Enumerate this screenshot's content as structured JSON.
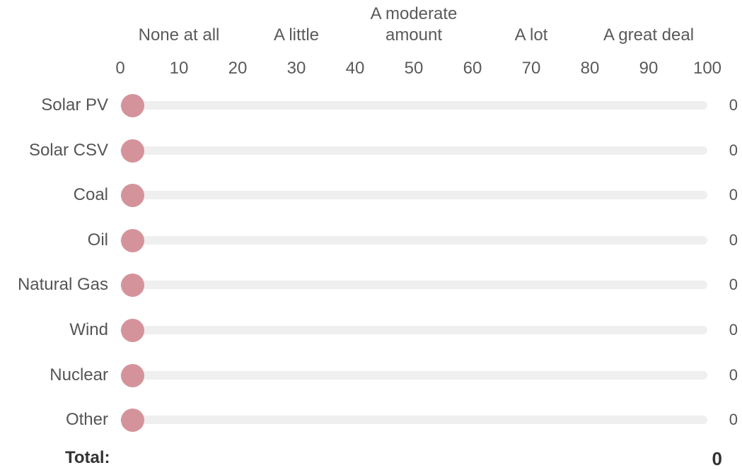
{
  "anchors": [
    {
      "label": "None at all",
      "value": 10
    },
    {
      "label": "A little",
      "value": 30
    },
    {
      "label": "A moderate amount",
      "value": 50
    },
    {
      "label": "A lot",
      "value": 70
    },
    {
      "label": "A great deal",
      "value": 90
    }
  ],
  "scale": {
    "min": 0,
    "max": 100,
    "ticks": [
      "0",
      "10",
      "20",
      "30",
      "40",
      "50",
      "60",
      "70",
      "80",
      "90",
      "100"
    ]
  },
  "sliders": [
    {
      "label": "Solar PV",
      "value": 0,
      "display": "0"
    },
    {
      "label": "Solar CSV",
      "value": 0,
      "display": "0"
    },
    {
      "label": "Coal",
      "value": 0,
      "display": "0"
    },
    {
      "label": "Oil",
      "value": 0,
      "display": "0"
    },
    {
      "label": "Natural Gas",
      "value": 0,
      "display": "0"
    },
    {
      "label": "Wind",
      "value": 0,
      "display": "0"
    },
    {
      "label": "Nuclear",
      "value": 0,
      "display": "0"
    },
    {
      "label": "Other",
      "value": 0,
      "display": "0"
    }
  ],
  "total": {
    "label": "Total:",
    "value": "0"
  },
  "colors": {
    "handle": "#d4939b",
    "track": "#efefef",
    "text": "#555555"
  }
}
